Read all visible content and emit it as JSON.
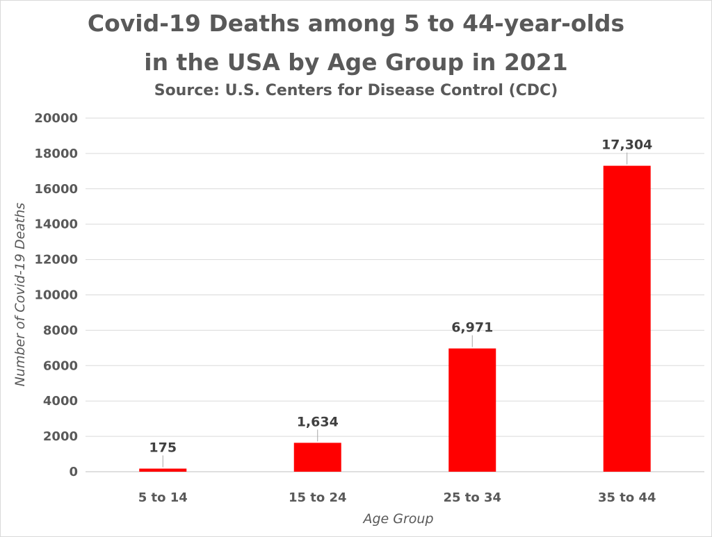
{
  "chart_data": {
    "type": "bar",
    "title": "Covid-19 Deaths among 5 to 44-year-olds",
    "title_line2": "in the USA by Age Group in 2021",
    "subtitle": "Source: U.S. Centers for Disease Control (CDC)",
    "xlabel": "Age Group",
    "ylabel": "Number of Covid-19 Deaths",
    "categories": [
      "5 to 14",
      "15 to 24",
      "25 to 34",
      "35 to 44"
    ],
    "values": [
      175,
      1634,
      6971,
      17304
    ],
    "data_labels": [
      "175",
      "1,634",
      "6,971",
      "17,304"
    ],
    "ylim": [
      0,
      20000
    ],
    "yticks": [
      "0",
      "2000",
      "4000",
      "6000",
      "8000",
      "10000",
      "12000",
      "14000",
      "16000",
      "18000",
      "20000"
    ],
    "grid": true,
    "bar_color": "#ff0000"
  }
}
